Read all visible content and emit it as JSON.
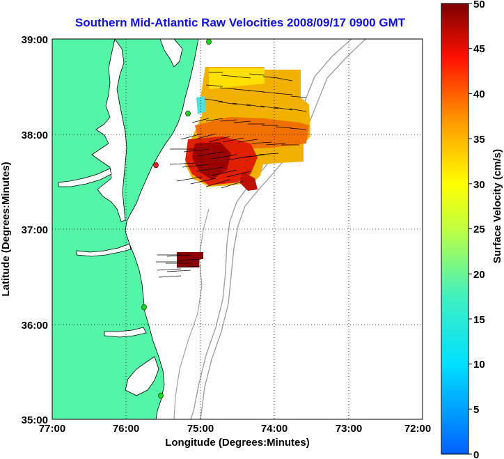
{
  "title": "Southern Mid-Atlantic Raw Velocities 2008/09/17 0900 GMT",
  "xaxis": {
    "label": "Longitude (Degrees:Minutes)",
    "ticks": [
      "77:00",
      "76:00",
      "75:00",
      "74:00",
      "73:00",
      "72:00"
    ]
  },
  "yaxis": {
    "label": "Latitude (Degrees:Minutes)",
    "ticks": [
      "39:00",
      "38:00",
      "37:00",
      "36:00",
      "35:00"
    ]
  },
  "colorbar": {
    "label": "Surface Velocity (cm/s)",
    "min": 0,
    "max": 50,
    "ticks": [
      "50",
      "45",
      "40",
      "35",
      "30",
      "25",
      "20",
      "15",
      "10",
      "5",
      "0"
    ]
  },
  "colors": {
    "title": "#1010e0",
    "land": "#55f5a8",
    "ocean": "#ffffff",
    "bathymetry": "#9a9a9a",
    "sites": "#22d422"
  }
}
